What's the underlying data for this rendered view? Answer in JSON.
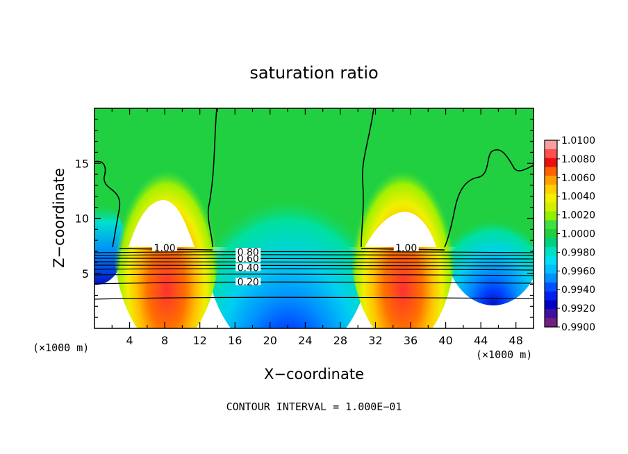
{
  "chart_data": {
    "type": "heatmap",
    "title": "saturation ratio",
    "xlabel": "X−coordinate",
    "ylabel": "Z−coordinate",
    "x_unit_label": "(×1000 m)",
    "y_unit_label": "(×1000 m)",
    "xlim": [
      0,
      50
    ],
    "ylim": [
      0,
      20
    ],
    "x_ticks": [
      4,
      8,
      12,
      16,
      20,
      24,
      28,
      32,
      36,
      40,
      44,
      48
    ],
    "y_ticks": [
      5,
      10,
      15
    ],
    "footer": "CONTOUR INTERVAL = 1.000E−01",
    "colorbar": {
      "min": 0.99,
      "max": 1.01,
      "step": 0.001,
      "labels": [
        "1.0100",
        "1.0080",
        "1.0060",
        "1.0040",
        "1.0020",
        "1.0000",
        "0.9980",
        "0.9960",
        "0.9940",
        "0.9920",
        "0.9900"
      ],
      "label_values": [
        1.01,
        1.008,
        1.006,
        1.004,
        1.002,
        1.0,
        0.998,
        0.996,
        0.994,
        0.992,
        0.99
      ],
      "colors": [
        "#f4a0a0",
        "#ff5050",
        "#e81010",
        "#ff6000",
        "#ffa000",
        "#ffd000",
        "#f0f000",
        "#d0f000",
        "#90f000",
        "#40e040",
        "#20d040",
        "#00d080",
        "#00e0c0",
        "#00e0f0",
        "#00c0ff",
        "#0090ff",
        "#0050ff",
        "#0020f0",
        "#0000c0",
        "#4010a0",
        "#702080"
      ]
    },
    "contour_labels": [
      {
        "text": "1.00",
        "x": 8,
        "z": 7.2
      },
      {
        "text": "1.00",
        "x": 35.5,
        "z": 7.2
      },
      {
        "text": "0.80",
        "x": 17.5,
        "z": 6.8
      },
      {
        "text": "0.60",
        "x": 17.5,
        "z": 6.2
      },
      {
        "text": "0.40",
        "x": 17.5,
        "z": 5.4
      },
      {
        "text": "0.20",
        "x": 17.5,
        "z": 4.1
      }
    ]
  }
}
